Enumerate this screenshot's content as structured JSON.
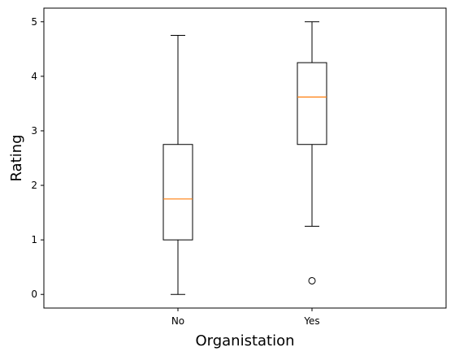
{
  "chart_data": {
    "type": "box",
    "categories": [
      "No",
      "Yes"
    ],
    "xlabel": "Organistation",
    "ylabel": "Rating",
    "ylim": [
      -0.25,
      5.25
    ],
    "yticks": [
      0,
      1,
      2,
      3,
      4,
      5
    ],
    "grid": false,
    "boxes": [
      {
        "label": "No",
        "whisker_low": 0.0,
        "q1": 1.0,
        "median": 1.75,
        "q3": 2.75,
        "whisker_high": 4.75,
        "outliers": []
      },
      {
        "label": "Yes",
        "whisker_low": 1.25,
        "q1": 2.75,
        "median": 3.62,
        "q3": 4.25,
        "whisker_high": 5.0,
        "outliers": [
          0.25
        ]
      }
    ],
    "colors": {
      "box": "#000000",
      "median": "#ff7f0e",
      "outlier": "#000000"
    }
  }
}
